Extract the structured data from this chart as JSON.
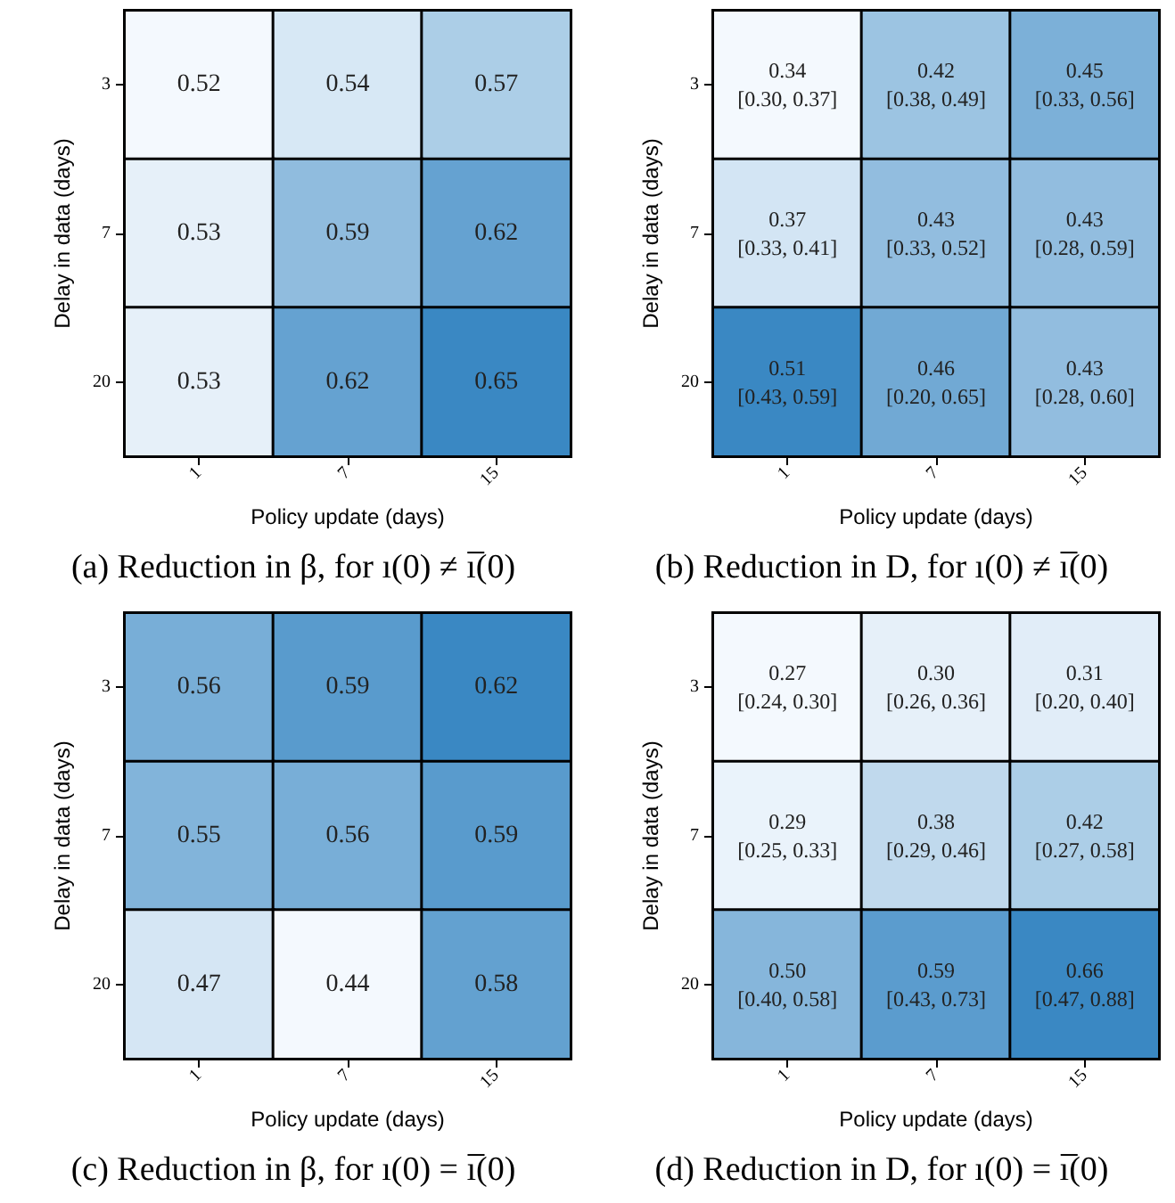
{
  "chart_data": [
    {
      "type": "heatmap",
      "title": "(a) Reduction in β, for ı(0) ≠ ı̅(0)",
      "xlabel": "Policy update (days)",
      "ylabel": "Delay in data (days)",
      "categories": [
        "1",
        "7",
        "15"
      ],
      "y_categories": [
        "3",
        "7",
        "20"
      ],
      "cells": [
        [
          0.52,
          0.54,
          0.57
        ],
        [
          0.53,
          0.59,
          0.62
        ],
        [
          0.53,
          0.62,
          0.65
        ]
      ],
      "data_labels": true
    },
    {
      "type": "heatmap",
      "title": "(b) Reduction in D, for ı(0) ≠ ı̅(0)",
      "xlabel": "Policy update (days)",
      "ylabel": "Delay in data (days)",
      "categories": [
        "1",
        "7",
        "15"
      ],
      "y_categories": [
        "3",
        "7",
        "20"
      ],
      "cells": [
        [
          0.34,
          0.42,
          0.45
        ],
        [
          0.37,
          0.43,
          0.43
        ],
        [
          0.51,
          0.46,
          0.43
        ]
      ],
      "data_labels": true,
      "annotations": [
        "[0.30, 0.37]",
        "[0.38, 0.49]",
        "[0.33, 0.56]",
        "[0.33, 0.41]",
        "[0.33, 0.52]",
        "[0.28, 0.59]",
        "[0.43, 0.59]",
        "[0.20, 0.65]",
        "[0.28, 0.60]"
      ]
    },
    {
      "type": "heatmap",
      "title": "(c) Reduction in β, for ı(0) = ı̅(0)",
      "xlabel": "Policy update (days)",
      "ylabel": "Delay in data (days)",
      "categories": [
        "1",
        "7",
        "15"
      ],
      "y_categories": [
        "3",
        "7",
        "20"
      ],
      "cells": [
        [
          0.56,
          0.59,
          0.62
        ],
        [
          0.55,
          0.56,
          0.59
        ],
        [
          0.47,
          0.44,
          0.58
        ]
      ],
      "data_labels": true
    },
    {
      "type": "heatmap",
      "title": "(d) Reduction in D, for ı(0) = ı̅(0)",
      "xlabel": "Policy update (days)",
      "ylabel": "Delay in data (days)",
      "categories": [
        "1",
        "7",
        "15"
      ],
      "y_categories": [
        "3",
        "7",
        "20"
      ],
      "cells": [
        [
          0.27,
          0.3,
          0.31
        ],
        [
          0.29,
          0.38,
          0.42
        ],
        [
          0.5,
          0.59,
          0.66
        ]
      ],
      "data_labels": true,
      "cell_labels": [
        [
          "0.27",
          "0.30",
          "0.31"
        ],
        [
          "0.29",
          "0.38",
          "0.42"
        ],
        [
          "0.50",
          "0.59",
          "0.66"
        ]
      ],
      "annotations": [
        "[0.24, 0.30]",
        "[0.26, 0.36]",
        "[0.20, 0.40]",
        "[0.25, 0.33]",
        "[0.29, 0.46]",
        "[0.27, 0.58]",
        "[0.40, 0.58]",
        "[0.43, 0.73]",
        "[0.47, 0.88]"
      ]
    }
  ]
}
